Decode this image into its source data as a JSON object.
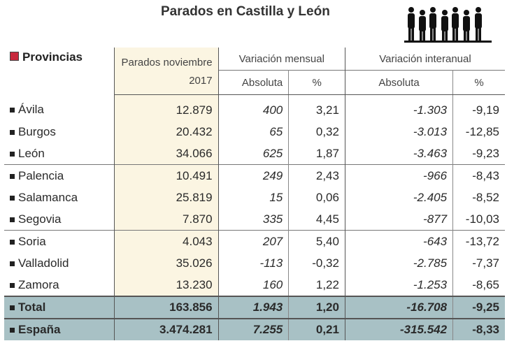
{
  "title": "Parados en Castilla y León",
  "chart_data": {
    "type": "table",
    "title": "Parados en Castilla y León",
    "header": {
      "provincias": "Provincias",
      "parados": "Parados noviembre 2017",
      "var_mensual": "Variación mensual",
      "var_interanual": "Variación interanual",
      "absoluta": "Absoluta",
      "pct": "%"
    },
    "rows": [
      {
        "name": "Ávila",
        "parados": "12.879",
        "m_abs": "400",
        "m_pct": "3,21",
        "i_abs": "-1.303",
        "i_pct": "-9,19"
      },
      {
        "name": "Burgos",
        "parados": "20.432",
        "m_abs": "65",
        "m_pct": "0,32",
        "i_abs": "-3.013",
        "i_pct": "-12,85"
      },
      {
        "name": "León",
        "parados": "34.066",
        "m_abs": "625",
        "m_pct": "1,87",
        "i_abs": "-3.463",
        "i_pct": "-9,23"
      },
      {
        "name": "Palencia",
        "parados": "10.491",
        "m_abs": "249",
        "m_pct": "2,43",
        "i_abs": "-966",
        "i_pct": "-8,43"
      },
      {
        "name": "Salamanca",
        "parados": "25.819",
        "m_abs": "15",
        "m_pct": "0,06",
        "i_abs": "-2.405",
        "i_pct": "-8,52"
      },
      {
        "name": "Segovia",
        "parados": "7.870",
        "m_abs": "335",
        "m_pct": "4,45",
        "i_abs": "-877",
        "i_pct": "-10,03"
      },
      {
        "name": "Soria",
        "parados": "4.043",
        "m_abs": "207",
        "m_pct": "5,40",
        "i_abs": "-643",
        "i_pct": "-13,72"
      },
      {
        "name": "Valladolid",
        "parados": "35.026",
        "m_abs": "-113",
        "m_pct": "-0,32",
        "i_abs": "-2.785",
        "i_pct": "-7,37"
      },
      {
        "name": "Zamora",
        "parados": "13.230",
        "m_abs": "160",
        "m_pct": "1,22",
        "i_abs": "-1.253",
        "i_pct": "-8,65"
      }
    ],
    "totals": [
      {
        "name": "Total",
        "parados": "163.856",
        "m_abs": "1.943",
        "m_pct": "1,20",
        "i_abs": "-16.708",
        "i_pct": "-9,25"
      },
      {
        "name": "España",
        "parados": "3.474.281",
        "m_abs": "7.255",
        "m_pct": "0,21",
        "i_abs": "-315.542",
        "i_pct": "-8,33"
      }
    ]
  },
  "colors": {
    "accent": "#c8283c",
    "highlight_col": "#fbf5e2",
    "total_row": "#a8c1c5"
  }
}
